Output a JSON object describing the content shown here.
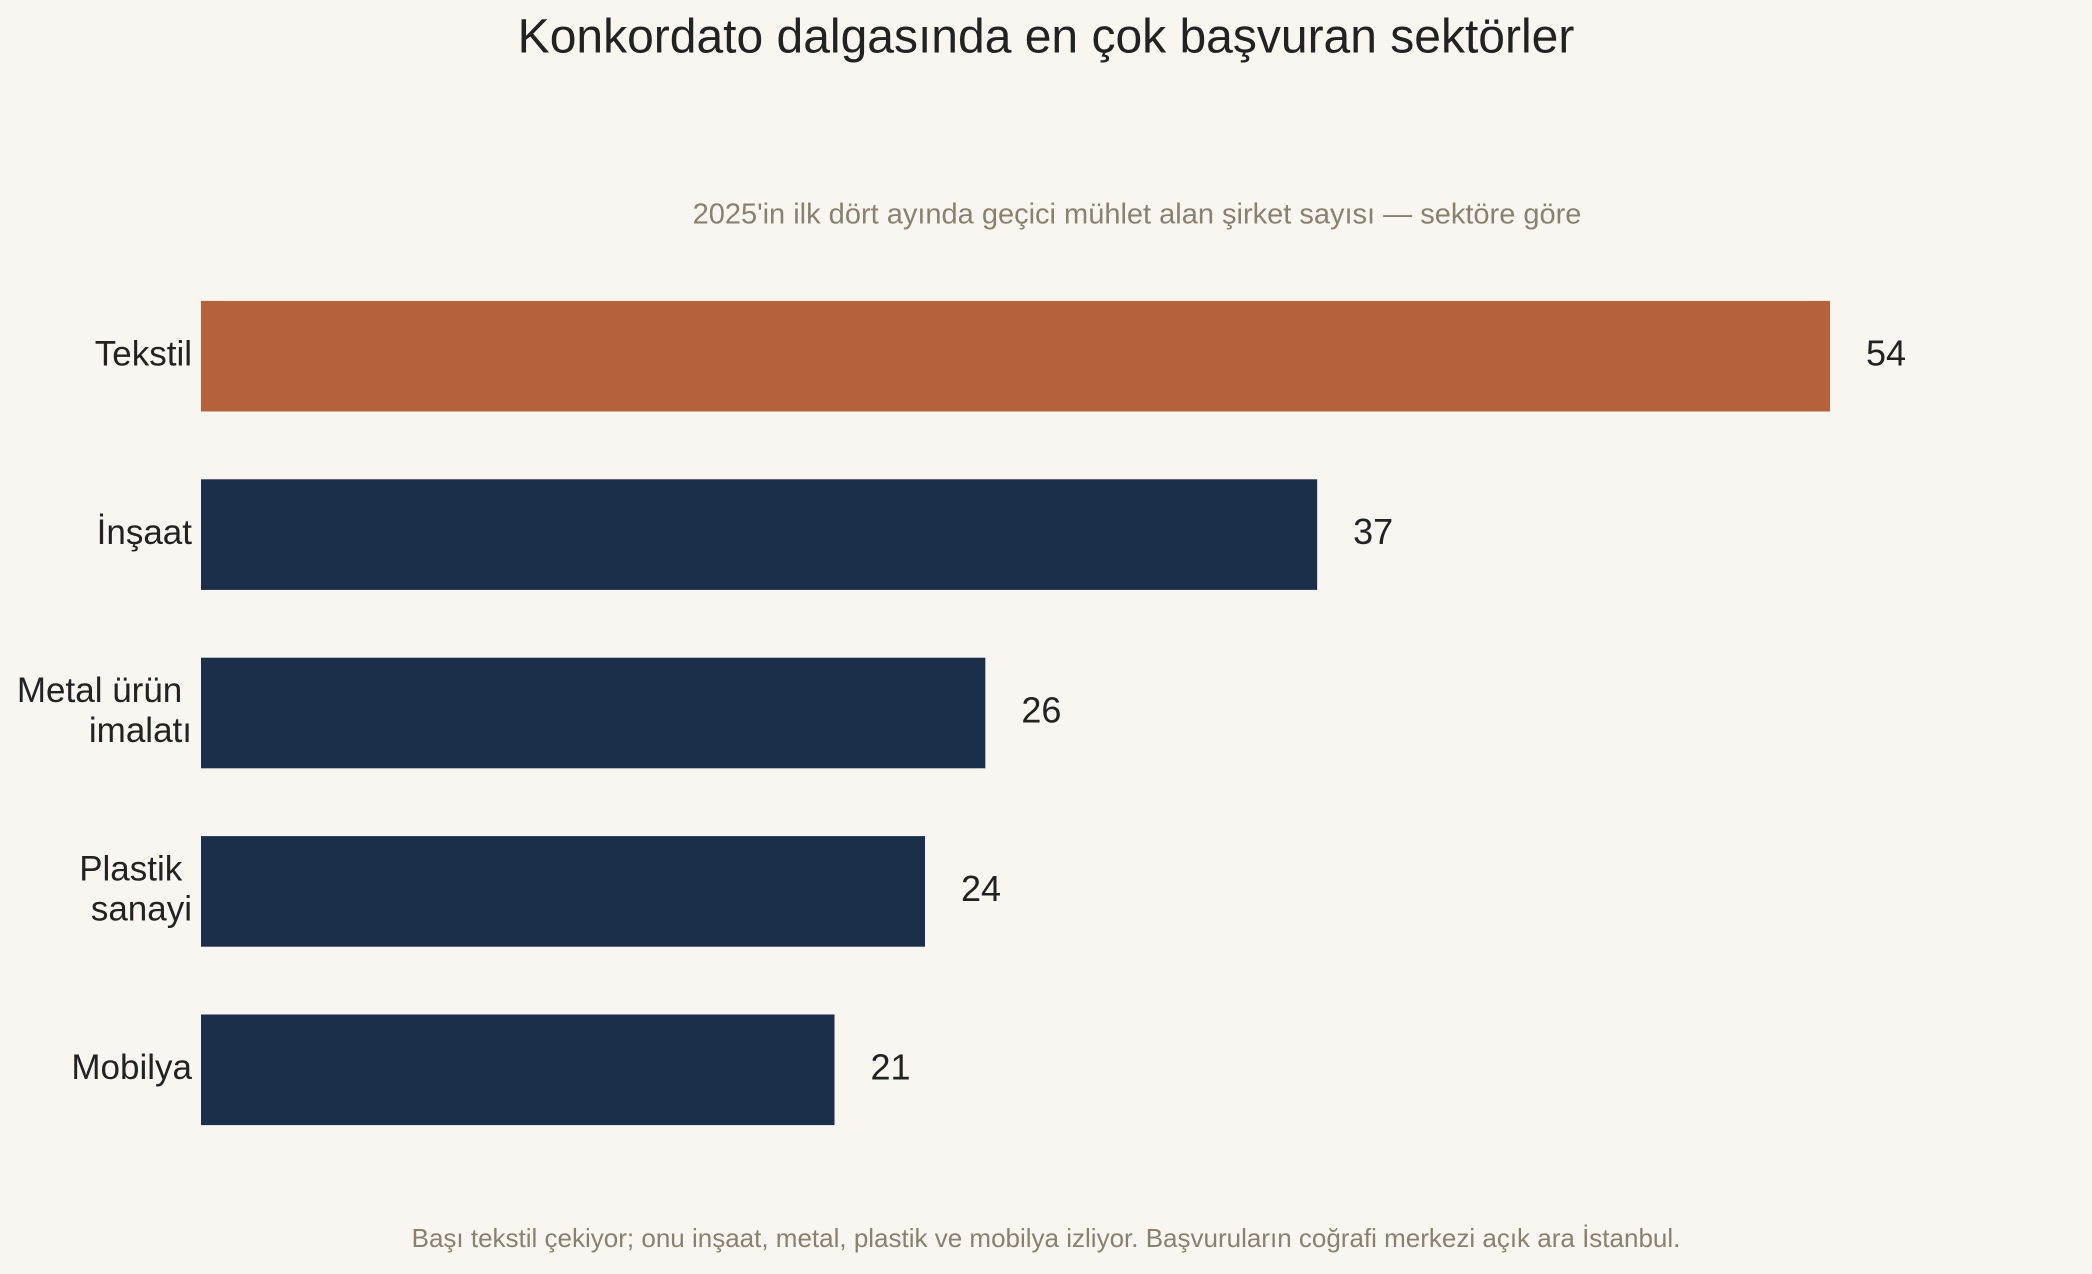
{
  "chart_data": {
    "type": "bar",
    "orientation": "horizontal",
    "title": "Konkordato dalgasında en çok başvuran sektörler",
    "subtitle": "2025'in ilk dört ayında geçici mühlet alan şirket sayısı — sektöre göre",
    "footnote": "Başı tekstil çekiyor; onu inşaat, metal, plastik ve mobilya izliyor. Başvuruların coğrafi merkezi açık ara İstanbul.",
    "categories": [
      "Tekstil",
      "İnşaat",
      "Metal ürün imalatı",
      "Plastik sanayi",
      "Mobilya"
    ],
    "values": [
      54,
      37,
      26,
      24,
      21
    ],
    "colors": [
      "#b5623c",
      "#1b2e4a",
      "#1b2e4a",
      "#1b2e4a",
      "#1b2e4a"
    ],
    "xlim": [
      0,
      60
    ]
  }
}
